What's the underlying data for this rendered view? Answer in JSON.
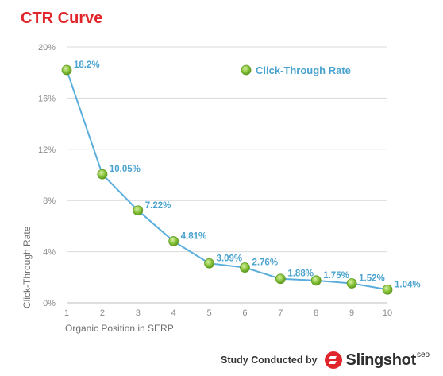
{
  "chart_data": {
    "type": "line",
    "title": "CTR Curve",
    "xlabel": "Organic Position in SERP",
    "ylabel": "Click-Through Rate",
    "x": [
      1,
      2,
      3,
      4,
      5,
      6,
      7,
      8,
      9,
      10
    ],
    "xticks": [
      "1",
      "2",
      "3",
      "4",
      "5",
      "6",
      "7",
      "8",
      "9",
      "10"
    ],
    "yticks": [
      "0%",
      "4%",
      "8%",
      "12%",
      "16%",
      "20%"
    ],
    "ylim": [
      0,
      20
    ],
    "grid": true,
    "legend_position": "top-right",
    "series": [
      {
        "name": "Click-Through Rate",
        "values": [
          18.2,
          10.05,
          7.22,
          4.81,
          3.09,
          2.76,
          1.88,
          1.75,
          1.52,
          1.04
        ],
        "labels": [
          "18.2%",
          "10.05%",
          "7.22%",
          "4.81%",
          "3.09%",
          "2.76%",
          "1.88%",
          "1.75%",
          "1.52%",
          "1.04%"
        ],
        "line_color": "#5aaedc",
        "marker_color": "#8cc63f"
      }
    ]
  },
  "footer": {
    "text": "Study Conducted by",
    "brand": "Slingshot",
    "brand_suffix": "seo",
    "brand_color": "#e0262b"
  }
}
